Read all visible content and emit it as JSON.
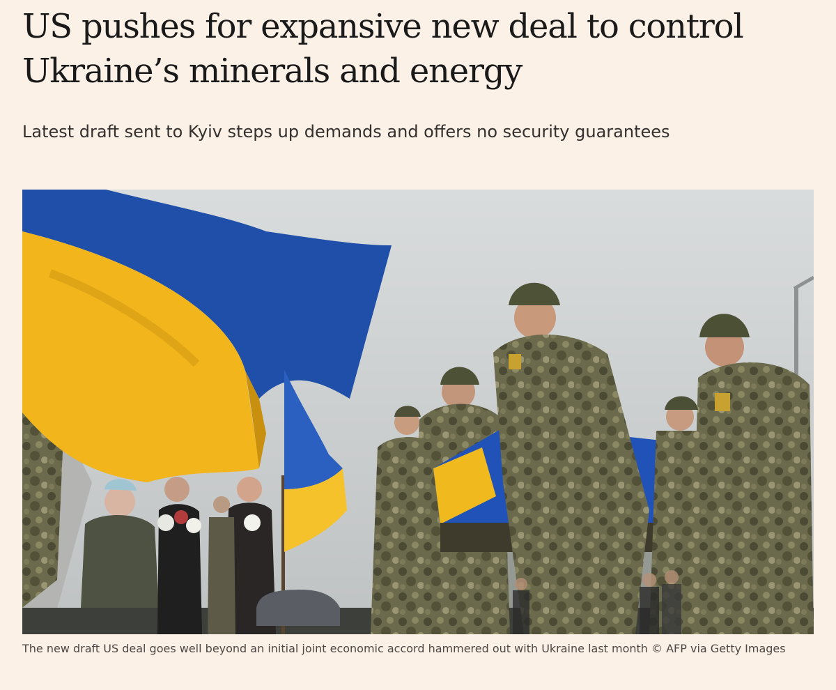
{
  "article": {
    "headline": "US pushes for expansive new deal to control Ukraine’s minerals and energy",
    "standfirst": "Latest draft sent to Kyiv steps up demands and offers no security guarantees",
    "image": {
      "caption": "The new draft US deal goes well beyond an initial joint economic accord hammered out with Ukraine last month © AFP via Getty Images"
    }
  },
  "colors": {
    "background": "#fcf1e7",
    "flag_blue": "#1f4fa8",
    "flag_yellow": "#f2b51c",
    "camouflage": "#6b6a4c"
  }
}
